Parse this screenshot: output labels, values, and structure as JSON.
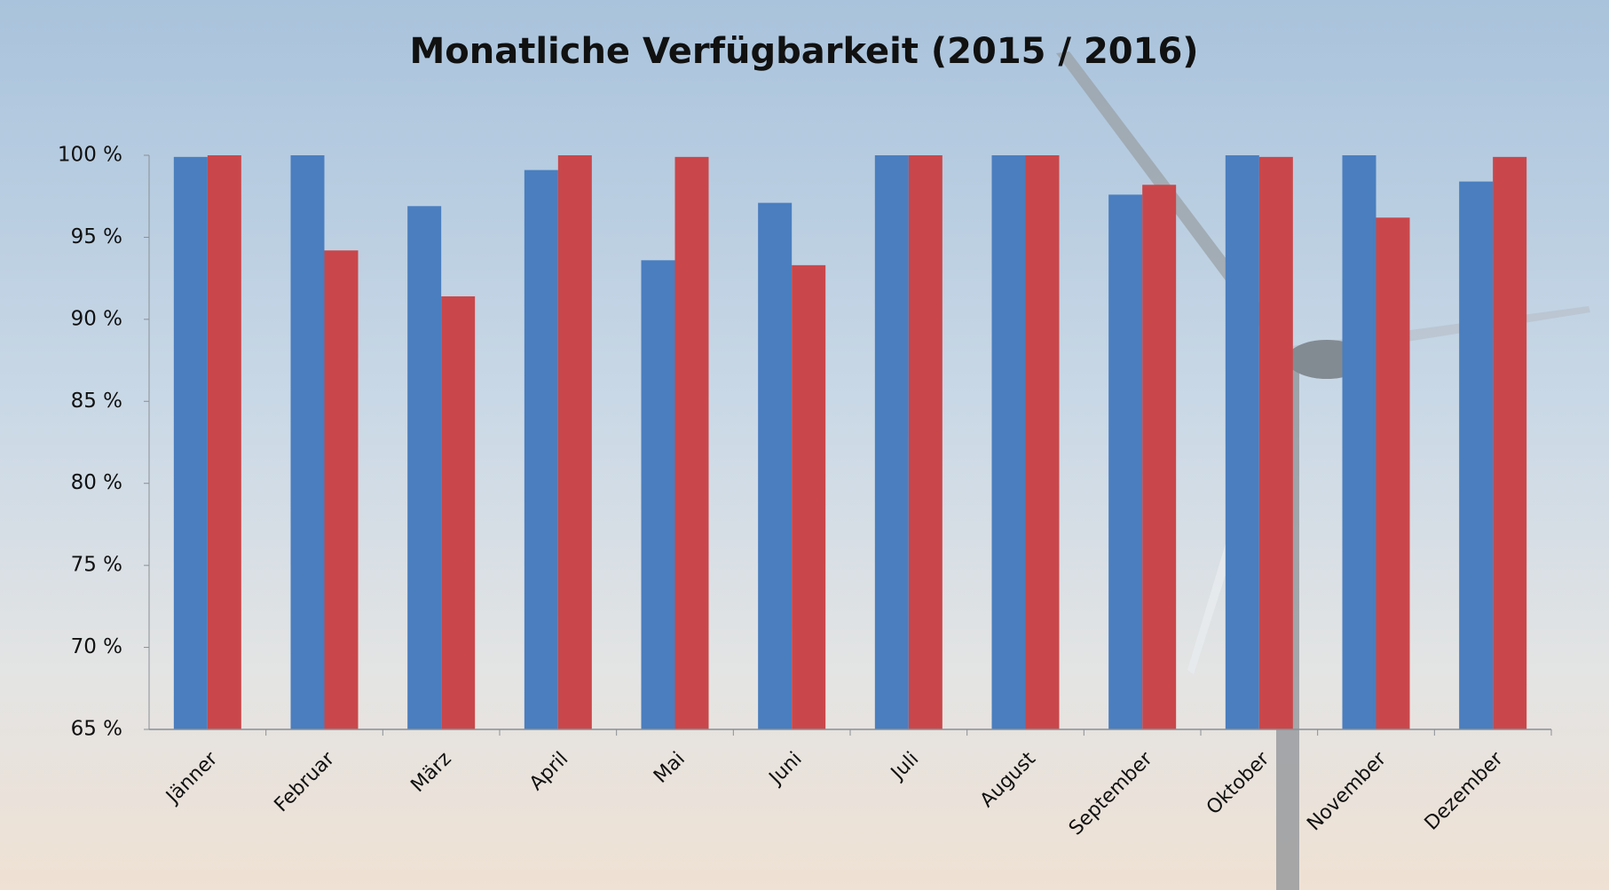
{
  "chart_data": {
    "type": "bar",
    "title": "Monatliche Verfügbarkeit (2015 / 2016)",
    "categories": [
      "Jänner",
      "Februar",
      "März",
      "April",
      "Mai",
      "Juni",
      "Juli",
      "August",
      "September",
      "Oktober",
      "November",
      "Dezember"
    ],
    "series": [
      {
        "color": "#4a7ebf",
        "values": [
          99.9,
          100,
          96.9,
          99.1,
          93.6,
          97.1,
          100,
          100,
          97.6,
          100,
          100,
          98.4
        ]
      },
      {
        "color": "#c9474a",
        "values": [
          100,
          94.2,
          91.4,
          100,
          99.9,
          93.3,
          100,
          100,
          98.2,
          99.9,
          96.2,
          99.9
        ]
      }
    ],
    "ylim": [
      65,
      100
    ],
    "yticks": [
      {
        "value": 65,
        "label": "65 %"
      },
      {
        "value": 70,
        "label": "70 %"
      },
      {
        "value": 75,
        "label": "75 %"
      },
      {
        "value": 80,
        "label": "80 %"
      },
      {
        "value": 85,
        "label": "85 %"
      },
      {
        "value": 90,
        "label": "90 %"
      },
      {
        "value": 95,
        "label": "95 %"
      },
      {
        "value": 100,
        "label": "100 %"
      }
    ],
    "grid": false
  }
}
